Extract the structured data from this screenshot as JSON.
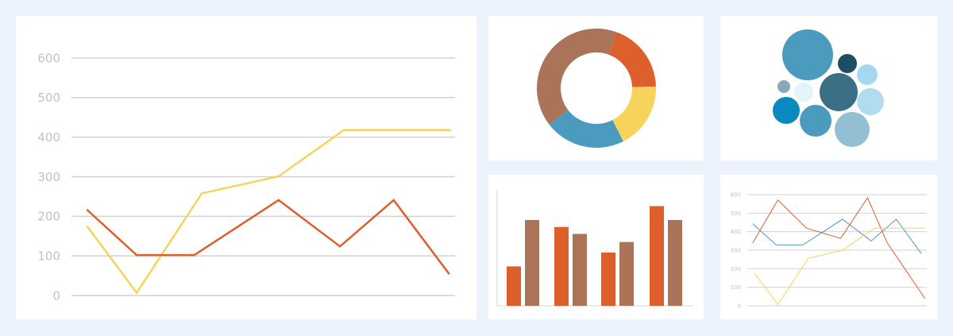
{
  "colors": {
    "background": "#edf3fc",
    "panel": "#ffffff",
    "grid": "#d2d2d2",
    "tick_text": "#c2c2c2"
  },
  "chart_data": [
    {
      "type": "line",
      "ylim": [
        0,
        600
      ],
      "yticks": [
        "0",
        "100",
        "200",
        "300",
        "400",
        "500",
        "600"
      ],
      "xlim": [
        0,
        100
      ],
      "grid": true,
      "series": [
        {
          "color": "#f7d35c",
          "x": [
            4,
            17,
            34,
            54,
            71,
            99
          ],
          "y": [
            176,
            7,
            258,
            301,
            418,
            418
          ]
        },
        {
          "color": "#dc5f2c",
          "x": [
            4,
            17,
            32,
            54,
            70,
            84,
            98.5
          ],
          "y": [
            217,
            102,
            102,
            241,
            124,
            241,
            54
          ]
        }
      ]
    },
    {
      "type": "pie",
      "donut": true,
      "slices": [
        {
          "value": 19,
          "color": "#dc5f2c"
        },
        {
          "value": 18,
          "color": "#f7d35c"
        },
        {
          "value": 22,
          "color": "#4a9bbd"
        },
        {
          "value": 41,
          "color": "#ab7459"
        }
      ]
    },
    {
      "type": "scatter",
      "bubble": true,
      "bubbles": [
        {
          "size": 32,
          "color": "#4a9bbd"
        },
        {
          "size": 12,
          "color": "#1c4f66"
        },
        {
          "size": 13,
          "color": "#a3d8f0"
        },
        {
          "size": 8,
          "color": "#8aa9b8"
        },
        {
          "size": 12,
          "color": "#e3f4fc"
        },
        {
          "size": 24,
          "color": "#3a6f85"
        },
        {
          "size": 17,
          "color": "#b0dcf0"
        },
        {
          "size": 17,
          "color": "#0b8ac2"
        },
        {
          "size": 20,
          "color": "#4a9bbd"
        },
        {
          "size": 22,
          "color": "#92bfd3"
        }
      ]
    },
    {
      "type": "bar",
      "ylim": [
        0,
        100
      ],
      "groups": 4,
      "series": [
        {
          "color": "#dc5f2c",
          "values": [
            34,
            68,
            46,
            86
          ]
        },
        {
          "color": "#ab7459",
          "values": [
            74,
            62,
            55,
            74
          ]
        }
      ]
    },
    {
      "type": "line",
      "ylim": [
        0,
        600
      ],
      "yticks": [
        "0",
        "100",
        "200",
        "300",
        "400",
        "500",
        "600"
      ],
      "xlim": [
        0,
        100
      ],
      "grid": true,
      "series": [
        {
          "color": "#4a9bbd",
          "x": [
            3,
            16,
            31,
            53,
            69,
            83,
            97
          ],
          "y": [
            443,
            329,
            329,
            467,
            350,
            467,
            281
          ]
        },
        {
          "color": "#dc5f2c",
          "x": [
            3,
            17,
            33,
            52,
            67,
            78,
            99
          ],
          "y": [
            339,
            571,
            419,
            364,
            583,
            339,
            39
          ]
        },
        {
          "color": "#f7d35c",
          "x": [
            4,
            17,
            34,
            53,
            71,
            99
          ],
          "y": [
            176,
            7,
            257,
            300,
            419,
            419
          ]
        }
      ]
    }
  ]
}
